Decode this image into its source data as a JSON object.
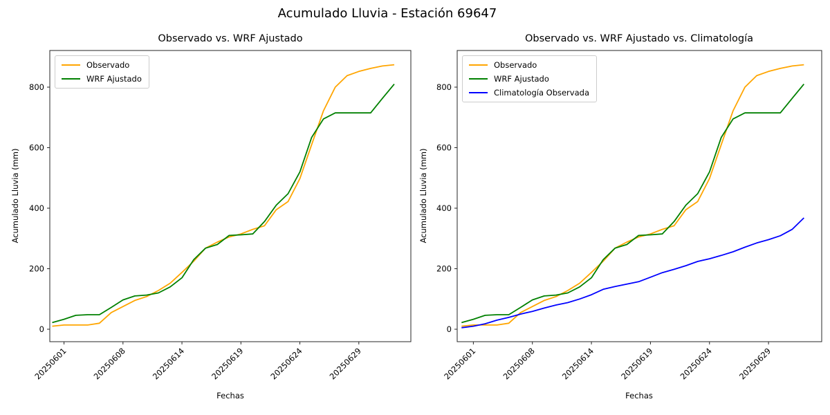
{
  "figure": {
    "title": "Acumulado Lluvia - Estación 69647",
    "background": "#ffffff",
    "text_color": "#000000",
    "spine_color": "#262626"
  },
  "chart_data": [
    {
      "type": "line",
      "title": "Observado vs. WRF Ajustado",
      "xlabel": "Fechas",
      "ylabel": "Acumulado Lluvia (mm)",
      "grid": false,
      "legend_position": "upper left",
      "y_ticks": [
        0,
        200,
        400,
        600,
        800
      ],
      "ylim": [
        -40,
        920
      ],
      "x_tick_labels": [
        "20250601",
        "20250608",
        "20250614",
        "20250619",
        "20250624",
        "20250629"
      ],
      "x_tick_indices": [
        1,
        6,
        11,
        16,
        21,
        26
      ],
      "n_points": 30,
      "series": [
        {
          "name": "Observado",
          "color": "#FFA500",
          "values": [
            10,
            14,
            14,
            14,
            20,
            55,
            75,
            95,
            108,
            128,
            152,
            188,
            225,
            268,
            288,
            305,
            315,
            330,
            342,
            395,
            422,
            498,
            610,
            722,
            800,
            838,
            852,
            862,
            870,
            874
          ]
        },
        {
          "name": "WRF Ajustado",
          "color": "#008000",
          "values": [
            22,
            33,
            46,
            48,
            48,
            72,
            97,
            110,
            113,
            120,
            140,
            170,
            230,
            268,
            280,
            310,
            312,
            315,
            356,
            410,
            448,
            520,
            634,
            695,
            715,
            715,
            715,
            715,
            763,
            810
          ]
        }
      ]
    },
    {
      "type": "line",
      "title": "Observado vs. WRF Ajustado vs. Climatología",
      "xlabel": "Fechas",
      "ylabel": "Acumulado Lluvia (mm)",
      "grid": false,
      "legend_position": "upper left",
      "y_ticks": [
        0,
        200,
        400,
        600,
        800
      ],
      "ylim": [
        -40,
        920
      ],
      "x_tick_labels": [
        "20250601",
        "20250608",
        "20250614",
        "20250619",
        "20250624",
        "20250629"
      ],
      "x_tick_indices": [
        1,
        6,
        11,
        16,
        21,
        26
      ],
      "n_points": 30,
      "series": [
        {
          "name": "Observado",
          "color": "#FFA500",
          "values": [
            10,
            14,
            14,
            14,
            20,
            55,
            75,
            95,
            108,
            128,
            152,
            188,
            225,
            268,
            288,
            305,
            315,
            330,
            342,
            395,
            422,
            498,
            610,
            722,
            800,
            838,
            852,
            862,
            870,
            874
          ]
        },
        {
          "name": "WRF Ajustado",
          "color": "#008000",
          "values": [
            22,
            33,
            46,
            48,
            48,
            72,
            97,
            110,
            113,
            120,
            140,
            170,
            230,
            268,
            280,
            310,
            312,
            315,
            356,
            410,
            448,
            520,
            634,
            695,
            715,
            715,
            715,
            715,
            763,
            810
          ]
        },
        {
          "name": "Climatología Observada",
          "color": "#0000FF",
          "values": [
            5,
            10,
            18,
            30,
            39,
            50,
            59,
            70,
            80,
            88,
            100,
            114,
            132,
            141,
            149,
            157,
            172,
            187,
            198,
            210,
            224,
            233,
            244,
            256,
            271,
            285,
            296,
            309,
            330,
            368
          ]
        }
      ]
    }
  ]
}
